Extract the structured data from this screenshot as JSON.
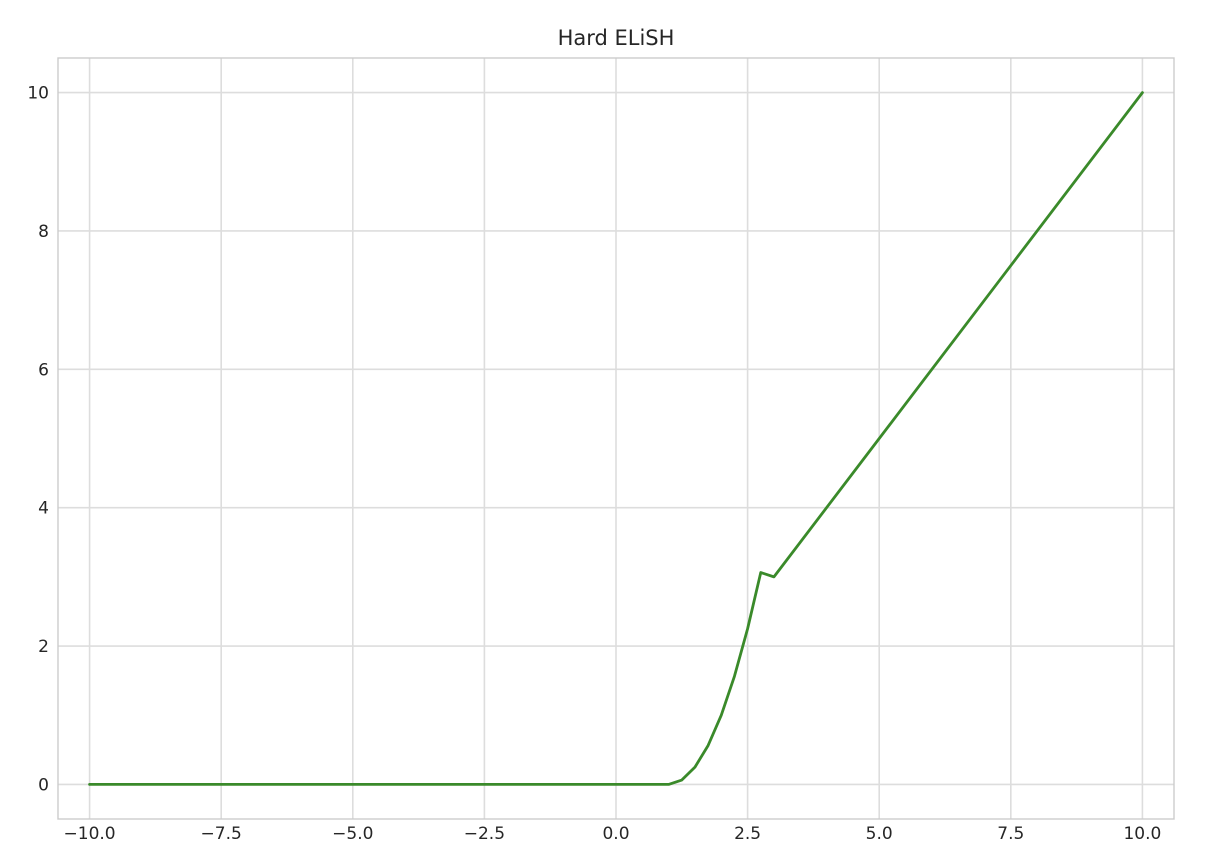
{
  "chart_data": {
    "type": "line",
    "title": "Hard ELiSH",
    "xlabel": "",
    "ylabel": "",
    "xlim": [
      -10.6,
      10.6
    ],
    "ylim": [
      -0.5,
      10.5
    ],
    "grid": true,
    "x_ticks": [
      -10.0,
      -7.5,
      -5.0,
      -2.5,
      0.0,
      2.5,
      5.0,
      7.5,
      10.0
    ],
    "x_tick_labels": [
      "−10.0",
      "−7.5",
      "−5.0",
      "−2.5",
      "0.0",
      "2.5",
      "5.0",
      "7.5",
      "10.0"
    ],
    "y_ticks": [
      0,
      2,
      4,
      6,
      8,
      10
    ],
    "y_tick_labels": [
      "0",
      "2",
      "4",
      "6",
      "8",
      "10"
    ],
    "series": [
      {
        "color": "#3a8a2a",
        "x": [
          -10.0,
          -5.0,
          0.0,
          1.0,
          1.25,
          1.5,
          1.75,
          2.0,
          2.25,
          2.5,
          2.75,
          3.0,
          5.0,
          7.5,
          10.0
        ],
        "y": [
          0.0,
          0.0,
          0.0,
          0.0,
          0.063,
          0.25,
          0.5625,
          1.0,
          1.5625,
          2.25,
          3.0625,
          3.0,
          5.0,
          7.5,
          10.0
        ]
      }
    ]
  }
}
